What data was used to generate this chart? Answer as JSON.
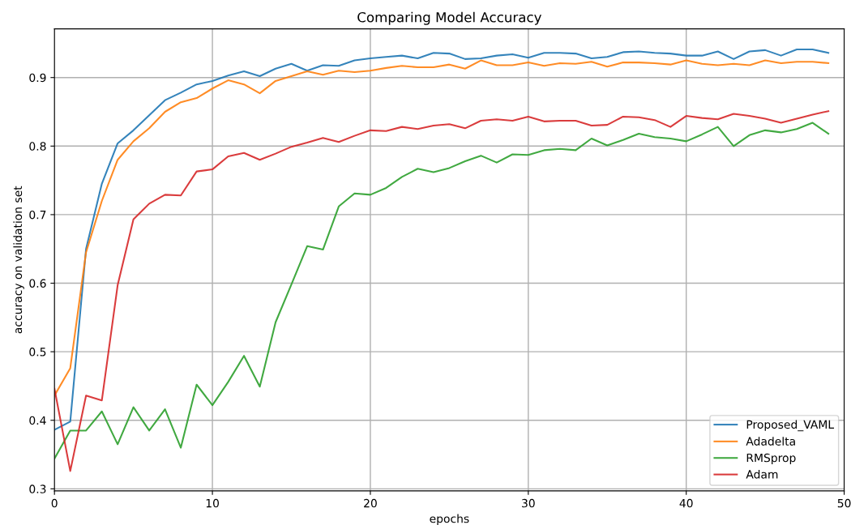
{
  "chart_data": {
    "type": "line",
    "title": "Comparing Model Accuracy",
    "xlabel": "epochs",
    "ylabel": "accuracy on validation set",
    "x": [
      0,
      1,
      2,
      3,
      4,
      5,
      6,
      7,
      8,
      9,
      10,
      11,
      12,
      13,
      14,
      15,
      16,
      17,
      18,
      19,
      20,
      21,
      22,
      23,
      24,
      25,
      26,
      27,
      28,
      29,
      30,
      31,
      32,
      33,
      34,
      35,
      36,
      37,
      38,
      39,
      40,
      41,
      42,
      43,
      44,
      45,
      46,
      47,
      48,
      49
    ],
    "series": [
      {
        "name": "Proposed_VAML",
        "color": "#1f77b4",
        "values": [
          0.386,
          0.398,
          0.65,
          0.745,
          0.804,
          0.823,
          0.845,
          0.867,
          0.878,
          0.89,
          0.895,
          0.903,
          0.909,
          0.902,
          0.913,
          0.92,
          0.91,
          0.918,
          0.917,
          0.925,
          0.928,
          0.93,
          0.932,
          0.928,
          0.936,
          0.935,
          0.927,
          0.928,
          0.932,
          0.934,
          0.929,
          0.936,
          0.936,
          0.935,
          0.928,
          0.93,
          0.937,
          0.938,
          0.936,
          0.935,
          0.932,
          0.932,
          0.938,
          0.927,
          0.938,
          0.94,
          0.932,
          0.941,
          0.941,
          0.936
        ]
      },
      {
        "name": "Adadelta",
        "color": "#ff7f0e",
        "values": [
          0.436,
          0.476,
          0.645,
          0.72,
          0.78,
          0.807,
          0.826,
          0.85,
          0.864,
          0.87,
          0.884,
          0.896,
          0.89,
          0.877,
          0.895,
          0.902,
          0.909,
          0.904,
          0.91,
          0.908,
          0.91,
          0.914,
          0.917,
          0.915,
          0.915,
          0.919,
          0.913,
          0.925,
          0.918,
          0.918,
          0.922,
          0.917,
          0.921,
          0.92,
          0.923,
          0.916,
          0.922,
          0.922,
          0.921,
          0.919,
          0.925,
          0.92,
          0.918,
          0.92,
          0.918,
          0.925,
          0.921,
          0.923,
          0.923,
          0.921
        ]
      },
      {
        "name": "RMSprop",
        "color": "#2ca02c",
        "values": [
          0.344,
          0.385,
          0.385,
          0.413,
          0.365,
          0.419,
          0.385,
          0.416,
          0.36,
          0.452,
          0.422,
          0.456,
          0.494,
          0.449,
          0.543,
          0.598,
          0.654,
          0.649,
          0.712,
          0.731,
          0.729,
          0.739,
          0.755,
          0.767,
          0.762,
          0.768,
          0.778,
          0.786,
          0.776,
          0.788,
          0.787,
          0.794,
          0.796,
          0.794,
          0.811,
          0.801,
          0.809,
          0.818,
          0.813,
          0.811,
          0.807,
          0.817,
          0.828,
          0.8,
          0.816,
          0.823,
          0.82,
          0.825,
          0.834,
          0.818
        ]
      },
      {
        "name": "Adam",
        "color": "#d62728",
        "values": [
          0.446,
          0.326,
          0.436,
          0.429,
          0.597,
          0.693,
          0.716,
          0.729,
          0.728,
          0.763,
          0.766,
          0.785,
          0.79,
          0.78,
          0.789,
          0.799,
          0.805,
          0.812,
          0.806,
          0.815,
          0.823,
          0.822,
          0.828,
          0.825,
          0.83,
          0.832,
          0.826,
          0.837,
          0.839,
          0.837,
          0.843,
          0.836,
          0.837,
          0.837,
          0.83,
          0.831,
          0.843,
          0.842,
          0.838,
          0.828,
          0.844,
          0.841,
          0.839,
          0.847,
          0.844,
          0.84,
          0.834,
          0.84,
          0.846,
          0.851
        ]
      }
    ],
    "xlim": [
      0,
      50
    ],
    "xticks": [
      0,
      10,
      20,
      30,
      40,
      50
    ],
    "ylim": [
      0.297,
      0.971
    ],
    "yticks": [
      0.3,
      0.4,
      0.5,
      0.6,
      0.7,
      0.8,
      0.9
    ],
    "grid": true,
    "legend": "lower right",
    "marker": "none",
    "line_style": "solid"
  }
}
